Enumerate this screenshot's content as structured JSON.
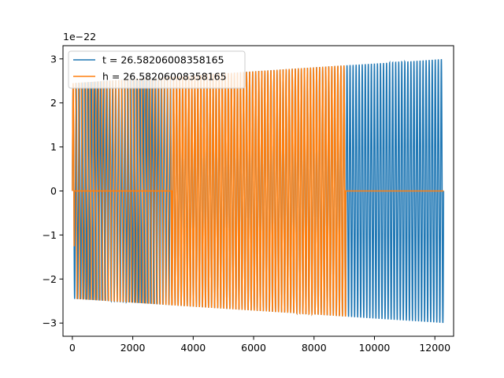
{
  "chart_data": {
    "type": "line",
    "title": "",
    "xlabel": "",
    "ylabel": "",
    "y_offset_label": "1e−22",
    "xlim": [
      -310,
      12620
    ],
    "ylim": [
      -3.3,
      3.3
    ],
    "x_ticks": [
      0,
      2000,
      4000,
      6000,
      8000,
      10000,
      12000
    ],
    "x_tick_labels": [
      "0",
      "2000",
      "4000",
      "6000",
      "8000",
      "10000",
      "12000"
    ],
    "y_ticks": [
      3,
      2,
      1,
      0,
      -1,
      -2,
      -3
    ],
    "y_tick_labels": [
      "3",
      "2",
      "1",
      "0",
      "−1",
      "−2",
      "−3"
    ],
    "grid": false,
    "legend": "upper-left",
    "series": [
      {
        "name": "t = 26.58206008358165",
        "color": "#1f77b4",
        "x_start": 0,
        "x_end": 12290,
        "amplitude_start": 2.45,
        "amplitude_end": 3.0,
        "cycles": 122
      },
      {
        "name": "h = 26.58206008358165",
        "color": "#ff7f0e",
        "x_start": 0,
        "x_end": 12290,
        "amplitude_start": 2.45,
        "amplitude_end": 3.0,
        "cycles": 122,
        "nonzero_ranges": [
          [
            0,
            60
          ],
          [
            3290,
            9050
          ]
        ],
        "pulse_ranges": [
          [
            60,
            3290
          ]
        ],
        "pulse_count": 34
      }
    ]
  }
}
